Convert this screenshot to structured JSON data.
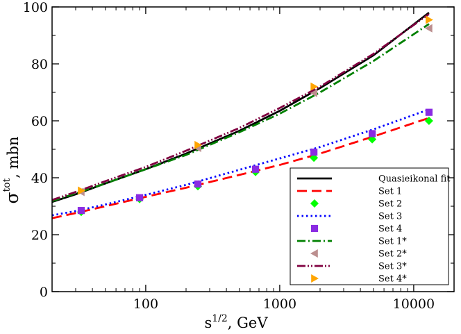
{
  "chart_data": {
    "type": "line",
    "title": "",
    "xlabel_main": "s",
    "xlabel_sup": "1/2",
    "xlabel_unit": ", GeV",
    "ylabel_main": "σ",
    "ylabel_sup": "tot",
    "ylabel_unit": ", mbn",
    "xscale": "log",
    "xlim": [
      20,
      20000
    ],
    "ylim": [
      0,
      100
    ],
    "xticks": [
      100,
      1000,
      10000
    ],
    "xtick_labels": [
      "100",
      "1000",
      "10000"
    ],
    "yticks": [
      0,
      20,
      40,
      60,
      80,
      100
    ],
    "ytick_labels": [
      "0",
      "20",
      "40",
      "60",
      "80",
      "100"
    ],
    "grid": false,
    "legend_position": "bottom-right",
    "series": [
      {
        "name": "Quasieikonal fit",
        "kind": "line",
        "color": "#000000",
        "dash": "solid",
        "x": [
          20,
          30,
          50,
          100,
          200,
          500,
          1000,
          2000,
          5000,
          13000
        ],
        "y": [
          31.5,
          34.2,
          38.0,
          43.0,
          48.5,
          56.5,
          63.5,
          71.5,
          83.0,
          98.0
        ]
      },
      {
        "name": "Set 1",
        "kind": "line",
        "color": "#ff0000",
        "dash": "dashed",
        "x": [
          20,
          30,
          50,
          100,
          200,
          500,
          1000,
          2000,
          5000,
          13000
        ],
        "y": [
          25.8,
          27.6,
          30.0,
          33.3,
          36.5,
          41.0,
          44.5,
          48.5,
          54.5,
          61.0
        ]
      },
      {
        "name": "Set 2",
        "kind": "marker",
        "marker": "diamond",
        "color": "#00ff00",
        "x": [
          33,
          90,
          245,
          660,
          1800,
          4900,
          13000
        ],
        "y": [
          28.0,
          32.5,
          37.0,
          42.0,
          47.0,
          53.5,
          60.0
        ]
      },
      {
        "name": "Set 3",
        "kind": "line",
        "color": "#0000ff",
        "dash": "dotted",
        "x": [
          20,
          30,
          50,
          100,
          200,
          500,
          1000,
          2000,
          5000,
          13000
        ],
        "y": [
          26.8,
          28.3,
          30.6,
          34.0,
          37.5,
          42.8,
          46.8,
          50.8,
          57.0,
          64.0
        ]
      },
      {
        "name": "Set 4",
        "kind": "marker",
        "marker": "square",
        "color": "#8a2be2",
        "x": [
          33,
          90,
          245,
          660,
          1800,
          4900,
          13000
        ],
        "y": [
          28.5,
          33.0,
          37.8,
          43.0,
          49.0,
          55.5,
          63.0
        ]
      },
      {
        "name": "Set 1*",
        "kind": "line",
        "color": "#008000",
        "dash": "dashdot",
        "x": [
          20,
          30,
          50,
          100,
          200,
          500,
          1000,
          2000,
          5000,
          13000
        ],
        "y": [
          31.8,
          34.5,
          38.0,
          43.0,
          48.0,
          56.0,
          62.5,
          70.0,
          81.0,
          94.0
        ]
      },
      {
        "name": "Set 2*",
        "kind": "marker",
        "marker": "triangle-left",
        "color": "#bc8f8f",
        "x": [
          33,
          245,
          1800,
          13000
        ],
        "y": [
          35.0,
          50.5,
          69.8,
          92.5
        ]
      },
      {
        "name": "Set 3*",
        "kind": "line",
        "color": "#800040",
        "dash": "dashdotdot",
        "x": [
          20,
          30,
          50,
          100,
          200,
          500,
          1000,
          2000,
          5000,
          13000
        ],
        "y": [
          32.2,
          35.0,
          38.8,
          43.8,
          49.5,
          57.5,
          64.5,
          72.0,
          83.5,
          97.5
        ]
      },
      {
        "name": "Set 4*",
        "kind": "marker",
        "marker": "triangle-right",
        "color": "#ffa500",
        "x": [
          33,
          245,
          1800,
          13000
        ],
        "y": [
          35.5,
          51.5,
          72.0,
          95.5
        ]
      }
    ]
  }
}
